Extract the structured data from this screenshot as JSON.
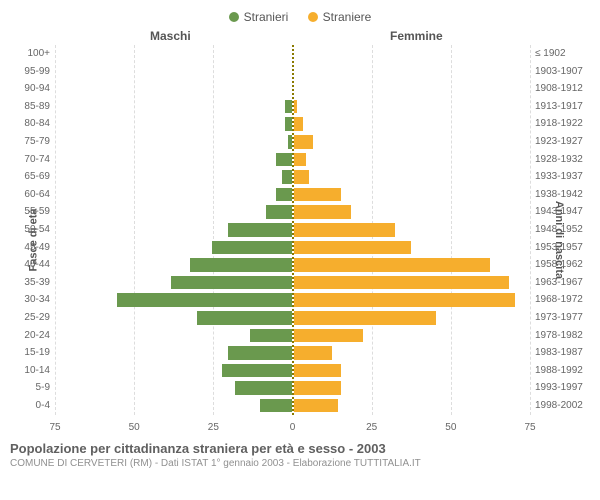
{
  "legend": {
    "male_label": "Stranieri",
    "female_label": "Straniere",
    "male_color": "#6a994e",
    "female_color": "#f6ae2d"
  },
  "column_headers": {
    "male": "Maschi",
    "female": "Femmine"
  },
  "axis_titles": {
    "left": "Fasce di età",
    "right": "Anni di nascita"
  },
  "chart": {
    "type": "population-pyramid",
    "x_max": 75,
    "x_ticks": [
      75,
      50,
      25,
      0,
      25,
      50,
      75
    ],
    "background_color": "#ffffff",
    "grid_color": "#dddddd",
    "center_line_color": "#8a7a00",
    "bar_colors": {
      "male": "#6a994e",
      "female": "#f6ae2d"
    },
    "label_fontsize": 10,
    "rows": [
      {
        "age": "100+",
        "birth": "≤ 1902",
        "m": 0,
        "f": 0
      },
      {
        "age": "95-99",
        "birth": "1903-1907",
        "m": 0,
        "f": 0
      },
      {
        "age": "90-94",
        "birth": "1908-1912",
        "m": 0,
        "f": 0
      },
      {
        "age": "85-89",
        "birth": "1913-1917",
        "m": 2,
        "f": 1
      },
      {
        "age": "80-84",
        "birth": "1918-1922",
        "m": 2,
        "f": 3
      },
      {
        "age": "75-79",
        "birth": "1923-1927",
        "m": 1,
        "f": 6
      },
      {
        "age": "70-74",
        "birth": "1928-1932",
        "m": 5,
        "f": 4
      },
      {
        "age": "65-69",
        "birth": "1933-1937",
        "m": 3,
        "f": 5
      },
      {
        "age": "60-64",
        "birth": "1938-1942",
        "m": 5,
        "f": 15
      },
      {
        "age": "55-59",
        "birth": "1943-1947",
        "m": 8,
        "f": 18
      },
      {
        "age": "50-54",
        "birth": "1948-1952",
        "m": 20,
        "f": 32
      },
      {
        "age": "45-49",
        "birth": "1953-1957",
        "m": 25,
        "f": 37
      },
      {
        "age": "40-44",
        "birth": "1958-1962",
        "m": 32,
        "f": 62
      },
      {
        "age": "35-39",
        "birth": "1963-1967",
        "m": 38,
        "f": 68
      },
      {
        "age": "30-34",
        "birth": "1968-1972",
        "m": 55,
        "f": 70
      },
      {
        "age": "25-29",
        "birth": "1973-1977",
        "m": 30,
        "f": 45
      },
      {
        "age": "20-24",
        "birth": "1978-1982",
        "m": 13,
        "f": 22
      },
      {
        "age": "15-19",
        "birth": "1983-1987",
        "m": 20,
        "f": 12
      },
      {
        "age": "10-14",
        "birth": "1988-1992",
        "m": 22,
        "f": 15
      },
      {
        "age": "5-9",
        "birth": "1993-1997",
        "m": 18,
        "f": 15
      },
      {
        "age": "0-4",
        "birth": "1998-2002",
        "m": 10,
        "f": 14
      }
    ]
  },
  "footer": {
    "title": "Popolazione per cittadinanza straniera per età e sesso - 2003",
    "subtitle": "COMUNE DI CERVETERI (RM) - Dati ISTAT 1° gennaio 2003 - Elaborazione TUTTITALIA.IT"
  }
}
